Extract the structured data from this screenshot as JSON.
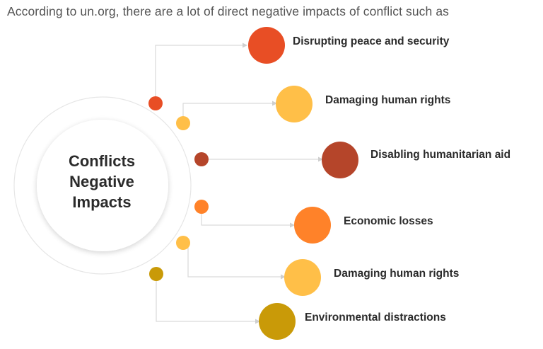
{
  "header_text": "According to un.org, there are a lot of direct negative impacts of conflict such as",
  "center": {
    "lines": [
      "Conflicts",
      "Negative",
      "Impacts"
    ]
  },
  "impacts": [
    {
      "label": "Disrupting peace and security",
      "color": "#e84e25"
    },
    {
      "label": "Damaging human rights",
      "color": "#ffbf48"
    },
    {
      "label": "Disabling humanitarian aid",
      "color": "#b5452a"
    },
    {
      "label": "Economic losses",
      "color": "#ff8229"
    },
    {
      "label": "Damaging human rights",
      "color": "#ffbf48"
    },
    {
      "label": "Environmental distractions",
      "color": "#c99a08"
    }
  ],
  "colors": {
    "ring": "#e6e6e6",
    "connector": "#d9d9d9",
    "text": "#2b2b2b",
    "header_text": "#555555"
  }
}
